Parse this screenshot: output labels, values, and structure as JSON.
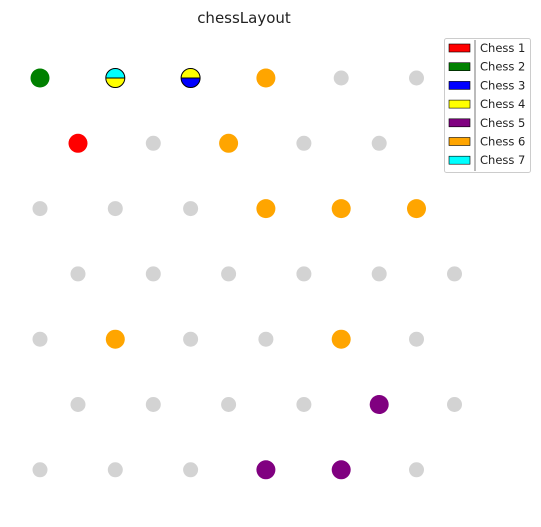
{
  "title": "chessLayout",
  "empty_color": "#d3d3d3",
  "legend": [
    {
      "label": "Chess 1",
      "color": "#ff0000"
    },
    {
      "label": "Chess 2",
      "color": "#008000"
    },
    {
      "label": "Chess 3",
      "color": "#0000ff"
    },
    {
      "label": "Chess 4",
      "color": "#ffff00"
    },
    {
      "label": "Chess 5",
      "color": "#800080"
    },
    {
      "label": "Chess 6",
      "color": "#ffa500"
    },
    {
      "label": "Chess 7",
      "color": "#00ffff"
    }
  ],
  "rows": [
    [
      {
        "fill": "#008000"
      },
      {
        "top": "#00ffff",
        "bottom": "#ffff00"
      },
      {
        "top": "#ffff00",
        "bottom": "#0000ff"
      },
      {
        "fill": "#ffa500"
      },
      null,
      null
    ],
    [
      {
        "fill": "#ff0000"
      },
      null,
      {
        "fill": "#ffa500"
      },
      null,
      null
    ],
    [
      null,
      null,
      null,
      {
        "fill": "#ffa500"
      },
      {
        "fill": "#ffa500"
      },
      {
        "fill": "#ffa500"
      }
    ],
    [
      null,
      null,
      null,
      null,
      null,
      null
    ],
    [
      null,
      {
        "fill": "#ffa500"
      },
      null,
      null,
      {
        "fill": "#ffa500"
      },
      null
    ],
    [
      null,
      null,
      null,
      null,
      {
        "fill": "#800080"
      },
      null
    ],
    [
      null,
      null,
      null,
      {
        "fill": "#800080"
      },
      {
        "fill": "#800080"
      },
      null
    ]
  ]
}
